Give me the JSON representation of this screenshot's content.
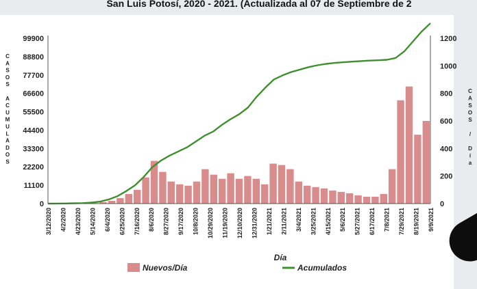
{
  "title": "San Luis Potosí, 2020 - 2021. (Actualizada al 07 de Septiembre de 2",
  "chart_data": {
    "type": "bar",
    "xlabel": "Día",
    "ylabel_left": "CASOS ACUMULADOS",
    "ylabel_right": "CASOS / Día",
    "y_left_ticks": [
      "0",
      "11100",
      "22200",
      "33300",
      "44400",
      "55500",
      "66600",
      "77700",
      "88800",
      "99900"
    ],
    "y_left_range": [
      0,
      99900
    ],
    "y_right_ticks": [
      "0",
      "200",
      "400",
      "600",
      "800",
      "1000",
      "1200"
    ],
    "y_right_range": [
      0,
      1200
    ],
    "x_ticks": [
      "3/12/2020",
      "4/2/2020",
      "4/23/2020",
      "5/14/2020",
      "6/4/2020",
      "6/25/2020",
      "7/16/2020",
      "8/6/2020",
      "8/27/2020",
      "9/17/2020",
      "10/8/2020",
      "10/29/2020",
      "11/19/2020",
      "12/10/2020",
      "12/31/2020",
      "1/21/2021",
      "2/11/2021",
      "3/4/2021",
      "3/25/2021",
      "4/15/2021",
      "5/6/2021",
      "5/27/2021",
      "6/17/2021",
      "7/8/2021",
      "7/29/2021",
      "8/19/2021",
      "9/9/2021"
    ],
    "grid": false,
    "legend_position": "bottom",
    "series": [
      {
        "name": "Nuevos/Día",
        "type": "bar",
        "axis": "right",
        "color": "#d98c8c",
        "values": [
          0,
          0,
          0,
          1,
          2,
          4,
          10,
          20,
          40,
          70,
          100,
          190,
          310,
          230,
          160,
          140,
          130,
          160,
          250,
          210,
          180,
          220,
          180,
          200,
          180,
          140,
          290,
          280,
          250,
          160,
          130,
          120,
          110,
          95,
          85,
          75,
          60,
          50,
          50,
          70,
          250,
          750,
          850,
          500,
          600
        ]
      },
      {
        "name": "Acumulados",
        "type": "line",
        "axis": "left",
        "color": "#3f8f2f",
        "values": [
          0,
          50,
          100,
          200,
          300,
          600,
          1200,
          2500,
          4500,
          7500,
          11000,
          16000,
          22000,
          26000,
          29000,
          31500,
          34000,
          37500,
          41000,
          43500,
          47500,
          51000,
          54000,
          58000,
          64500,
          70000,
          75000,
          77500,
          79500,
          81000,
          82500,
          83600,
          84400,
          85000,
          85400,
          85800,
          86100,
          86400,
          86600,
          86900,
          88000,
          92000,
          98000,
          104000,
          109000
        ]
      }
    ]
  }
}
